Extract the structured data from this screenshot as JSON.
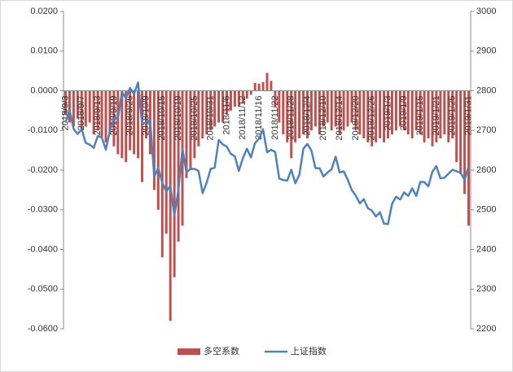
{
  "chart_data": {
    "type": "bar-line",
    "categories": [
      "2018/9/3",
      null,
      null,
      null,
      "2018/9/7",
      null,
      null,
      null,
      "2018/9/13",
      null,
      null,
      null,
      "2018/9/19",
      null,
      null,
      null,
      "2018/9/26",
      null,
      null,
      null,
      "2018/10/9",
      null,
      null,
      null,
      "2018/10/15",
      null,
      null,
      null,
      "2018/10/19",
      null,
      null,
      null,
      "2018/10/25",
      null,
      null,
      null,
      "2018/10/31",
      null,
      null,
      null,
      "2018/11/6",
      null,
      null,
      null,
      "2018/11/12",
      null,
      null,
      null,
      "2018/11/16",
      null,
      null,
      null,
      "2018/11/22",
      null,
      null,
      null,
      "2018/11/28",
      null,
      null,
      null,
      "2018/12/4",
      null,
      null,
      null,
      "2018/12/10",
      null,
      null,
      null,
      "2018/12/14",
      null,
      null,
      null,
      "2018/12/20",
      null,
      null,
      null,
      "2018/12/26",
      null,
      null,
      null,
      "2019/1/3",
      null,
      null,
      null,
      "2019/1/9",
      null,
      null,
      null,
      "2019/1/15",
      null,
      null,
      null,
      "2019/1/21",
      null,
      null,
      null,
      "2019/1/25",
      null,
      null,
      null,
      "2019/1/31"
    ],
    "series": [
      {
        "name": "多空系数",
        "color": "#c0504d",
        "axis": "y",
        "values": [
          -0.006,
          -0.008,
          -0.009,
          -0.007,
          -0.01,
          -0.009,
          -0.008,
          -0.011,
          -0.01,
          -0.012,
          -0.013,
          -0.011,
          -0.014,
          -0.016,
          -0.017,
          -0.018,
          -0.015,
          -0.016,
          -0.017,
          -0.023,
          -0.012,
          -0.016,
          -0.025,
          -0.03,
          -0.042,
          -0.036,
          -0.058,
          -0.047,
          -0.038,
          -0.034,
          -0.022,
          -0.02,
          -0.017,
          -0.014,
          -0.012,
          -0.011,
          -0.01,
          -0.009,
          -0.008,
          -0.008,
          -0.006,
          -0.005,
          -0.004,
          -0.004,
          -0.003,
          -0.002,
          -0.001,
          0.002,
          0.0018,
          0.0022,
          0.0045,
          0.0025,
          -0.004,
          -0.008,
          -0.011,
          -0.013,
          -0.017,
          -0.013,
          -0.012,
          -0.011,
          -0.012,
          -0.01,
          -0.009,
          -0.011,
          -0.009,
          -0.008,
          -0.01,
          -0.009,
          -0.011,
          -0.01,
          -0.009,
          -0.008,
          -0.01,
          -0.011,
          -0.012,
          -0.013,
          -0.014,
          -0.013,
          -0.012,
          -0.013,
          -0.012,
          -0.011,
          -0.01,
          -0.009,
          -0.01,
          -0.011,
          -0.012,
          -0.01,
          -0.011,
          -0.013,
          -0.012,
          -0.014,
          -0.013,
          -0.012,
          -0.011,
          -0.013,
          -0.012,
          -0.018,
          -0.021,
          -0.026,
          -0.034
        ]
      },
      {
        "name": "上证指数",
        "color": "#4f81bd",
        "axis": "y2",
        "values": [
          2720,
          2751,
          2704,
          2691,
          2703,
          2669,
          2664,
          2656,
          2686,
          2682,
          2652,
          2699,
          2730,
          2730,
          2797,
          2781,
          2807,
          2792,
          2821,
          2716,
          2721,
          2725,
          2583,
          2606,
          2568,
          2546,
          2561,
          2486,
          2550,
          2654,
          2594,
          2603,
          2603,
          2598,
          2542,
          2568,
          2603,
          2606,
          2676,
          2665,
          2659,
          2641,
          2635,
          2598,
          2630,
          2654,
          2632,
          2668,
          2679,
          2703,
          2645,
          2651,
          2646,
          2579,
          2575,
          2574,
          2601,
          2567,
          2588,
          2654,
          2666,
          2649,
          2605,
          2605,
          2584,
          2594,
          2602,
          2634,
          2594,
          2597,
          2576,
          2550,
          2536,
          2516,
          2527,
          2504,
          2498,
          2483,
          2494,
          2465,
          2464,
          2515,
          2533,
          2526,
          2544,
          2535,
          2554,
          2535,
          2570,
          2570,
          2559,
          2596,
          2610,
          2579,
          2581,
          2591,
          2601,
          2597,
          2594,
          2575,
          2610
        ]
      }
    ],
    "ylim": [
      -0.06,
      0.02
    ],
    "yticks": [
      {
        "value": 0.02,
        "label": "0.0200"
      },
      {
        "value": 0.01,
        "label": "0.0100"
      },
      {
        "value": 0,
        "label": "0.0000"
      },
      {
        "value": -0.01,
        "label": "-0.0100"
      },
      {
        "value": -0.02,
        "label": "-0.0200"
      },
      {
        "value": -0.03,
        "label": "-0.0300"
      },
      {
        "value": -0.04,
        "label": "-0.0400"
      },
      {
        "value": -0.05,
        "label": "-0.0500"
      },
      {
        "value": -0.06,
        "label": "-0.0600"
      }
    ],
    "y2lim": [
      2200,
      3000
    ],
    "y2ticks": [
      2200,
      2300,
      2400,
      2500,
      2600,
      2700,
      2800,
      2900,
      3000
    ],
    "legend": "bottom",
    "grid": false
  }
}
